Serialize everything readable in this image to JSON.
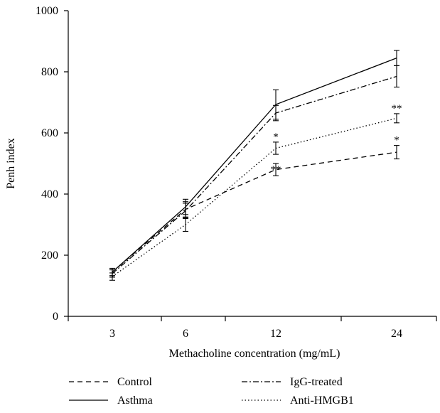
{
  "chart_data": {
    "type": "line",
    "xlabel": "Methacholine concentration (mg/mL)",
    "ylabel": "Penh index",
    "categories": [
      "3",
      "6",
      "12",
      "24"
    ],
    "ylim": [
      0,
      1000
    ],
    "yticks": [
      "0",
      "200",
      "400",
      "600",
      "800",
      "1000"
    ],
    "grid": false,
    "legend_position": "bottom",
    "series": [
      {
        "name": "Control",
        "style": "dashed",
        "values": [
          145,
          350,
          480,
          537
        ],
        "errors": [
          12,
          25,
          20,
          22
        ],
        "annotations": [
          "",
          "",
          "**",
          "*"
        ]
      },
      {
        "name": "Asthma",
        "style": "solid",
        "values": [
          145,
          358,
          693,
          845
        ],
        "errors": [
          12,
          25,
          48,
          25
        ],
        "annotations": [
          "",
          "",
          "",
          ""
        ]
      },
      {
        "name": "IgG-treated",
        "style": "dashdot",
        "values": [
          140,
          345,
          665,
          785
        ],
        "errors": [
          12,
          25,
          25,
          35
        ],
        "annotations": [
          "",
          "",
          "",
          ""
        ]
      },
      {
        "name": "Anti-HMGB1",
        "style": "dotted",
        "values": [
          130,
          300,
          550,
          648
        ],
        "errors": [
          12,
          22,
          20,
          15
        ],
        "annotations": [
          "",
          "",
          "*",
          "**"
        ]
      }
    ]
  }
}
